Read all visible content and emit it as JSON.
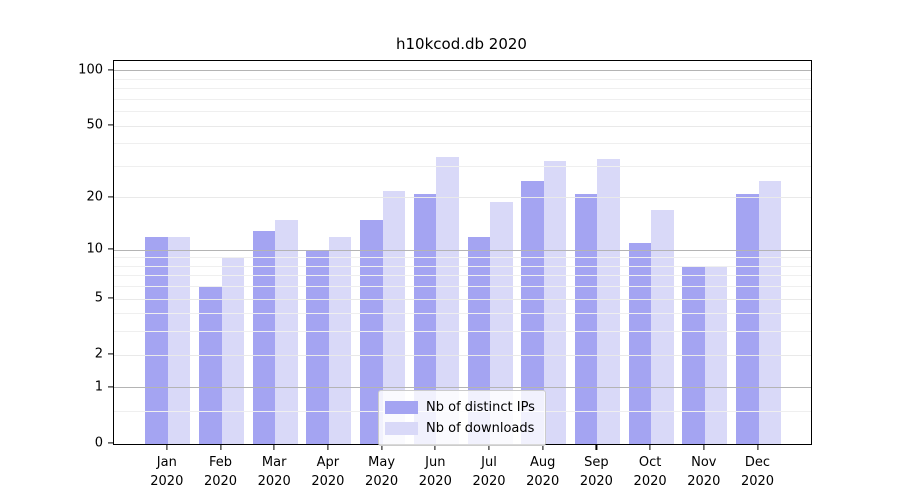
{
  "title": "h10kcod.db 2020",
  "chart_data": {
    "type": "bar",
    "title": "h10kcod.db 2020",
    "categories": [
      "Jan",
      "Feb",
      "Mar",
      "Apr",
      "May",
      "Jun",
      "Jul",
      "Aug",
      "Sep",
      "Oct",
      "Nov",
      "Dec"
    ],
    "category_year": "2020",
    "series": [
      {
        "name": "Nb of distinct IPs",
        "color": "#a4a4f2",
        "values": [
          12,
          6,
          13,
          10,
          15,
          21,
          12,
          25,
          21,
          11,
          8,
          21
        ]
      },
      {
        "name": "Nb of downloads",
        "color": "#d9d9f8",
        "values": [
          12,
          9,
          15,
          12,
          22,
          34,
          19,
          32,
          33,
          17,
          8,
          25
        ]
      }
    ],
    "yscale": "log1p",
    "ylim": [
      0,
      113
    ],
    "y_tick_values": [
      0,
      1,
      2,
      5,
      10,
      20,
      50,
      100
    ],
    "y_tick_labels": [
      "0",
      "1",
      "2",
      "5",
      "10",
      "20",
      "50",
      "100"
    ],
    "grid": true,
    "legend_position": "lower center"
  },
  "colors": {
    "major_gridline": "#b4b4b4",
    "minor_gridline": "#efefef",
    "mid_gridline": "#e9e9e9",
    "spine": "#000000",
    "legend_border": "#cccccc"
  }
}
